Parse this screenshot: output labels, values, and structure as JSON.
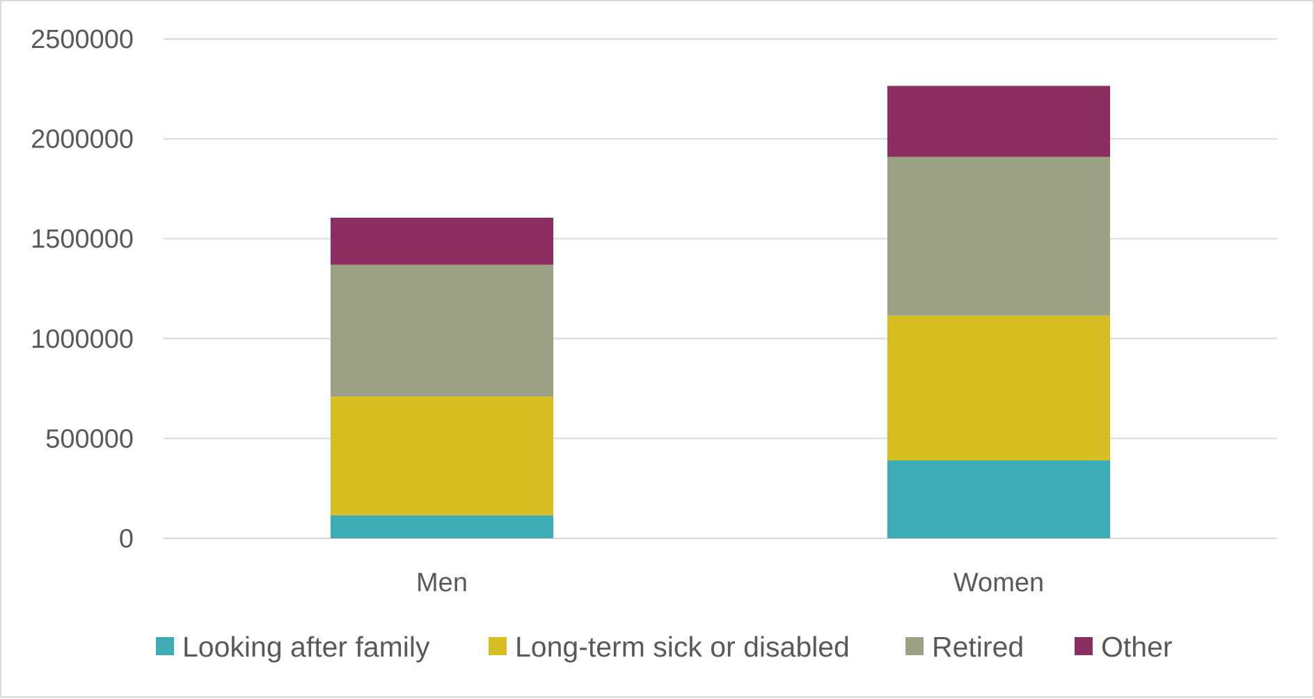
{
  "chart_data": {
    "type": "bar",
    "stacked": true,
    "title": "",
    "xlabel": "",
    "ylabel": "",
    "categories": [
      "Men",
      "Women"
    ],
    "series": [
      {
        "name": "Looking after family",
        "color": "#3eacb5",
        "values": [
          115000,
          390000
        ]
      },
      {
        "name": "Long-term sick or disabled",
        "color": "#d7be22",
        "values": [
          595000,
          725000
        ]
      },
      {
        "name": "Retired",
        "color": "#9ba284",
        "values": [
          660000,
          795000
        ]
      },
      {
        "name": "Other",
        "color": "#8b2e62",
        "values": [
          235000,
          355000
        ]
      }
    ],
    "ylim": [
      0,
      2500000
    ],
    "yticks": [
      "0",
      "500000",
      "1000000",
      "1500000",
      "2000000",
      "2500000"
    ],
    "grid": true,
    "legend_position": "bottom"
  }
}
